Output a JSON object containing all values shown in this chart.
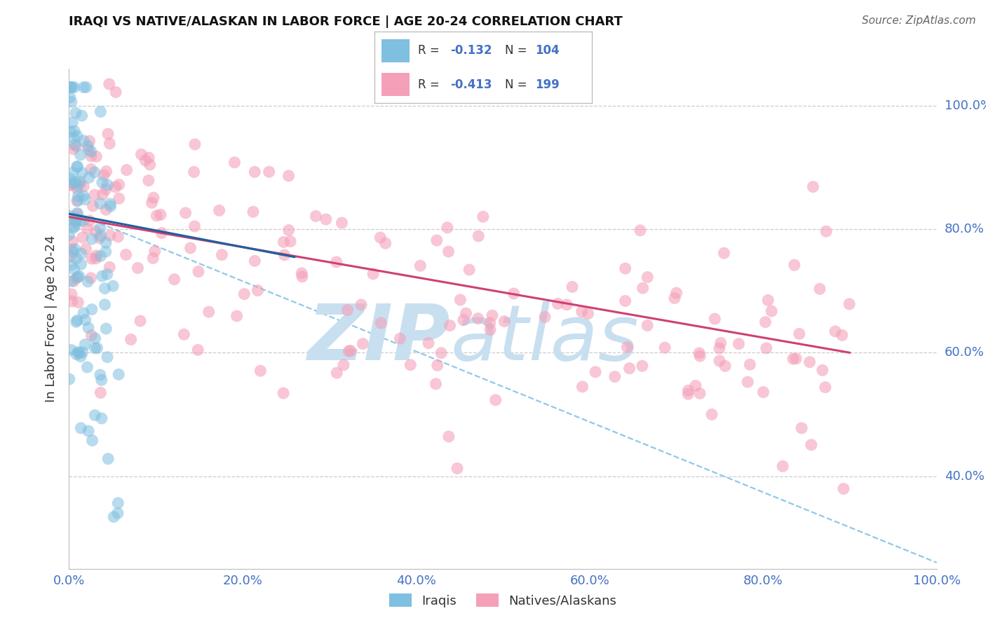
{
  "title": "IRAQI VS NATIVE/ALASKAN IN LABOR FORCE | AGE 20-24 CORRELATION CHART",
  "source": "Source: ZipAtlas.com",
  "ylabel_left": "In Labor Force | Age 20-24",
  "xlim": [
    0.0,
    1.0
  ],
  "ylim": [
    0.25,
    1.06
  ],
  "iraqis_R": -0.132,
  "iraqis_N": 104,
  "natives_R": -0.413,
  "natives_N": 199,
  "iraqi_color": "#7fbfdf",
  "native_color": "#f4a0b8",
  "iraqi_line_color": "#2060a0",
  "native_line_color": "#d04070",
  "iraqi_dash_color": "#90c8e8",
  "background_color": "#ffffff",
  "grid_color": "#cccccc",
  "title_color": "#111111",
  "tick_color": "#4472c4",
  "watermark_zip": "ZIP",
  "watermark_atlas": "atlas",
  "watermark_color": "#c8dff0"
}
